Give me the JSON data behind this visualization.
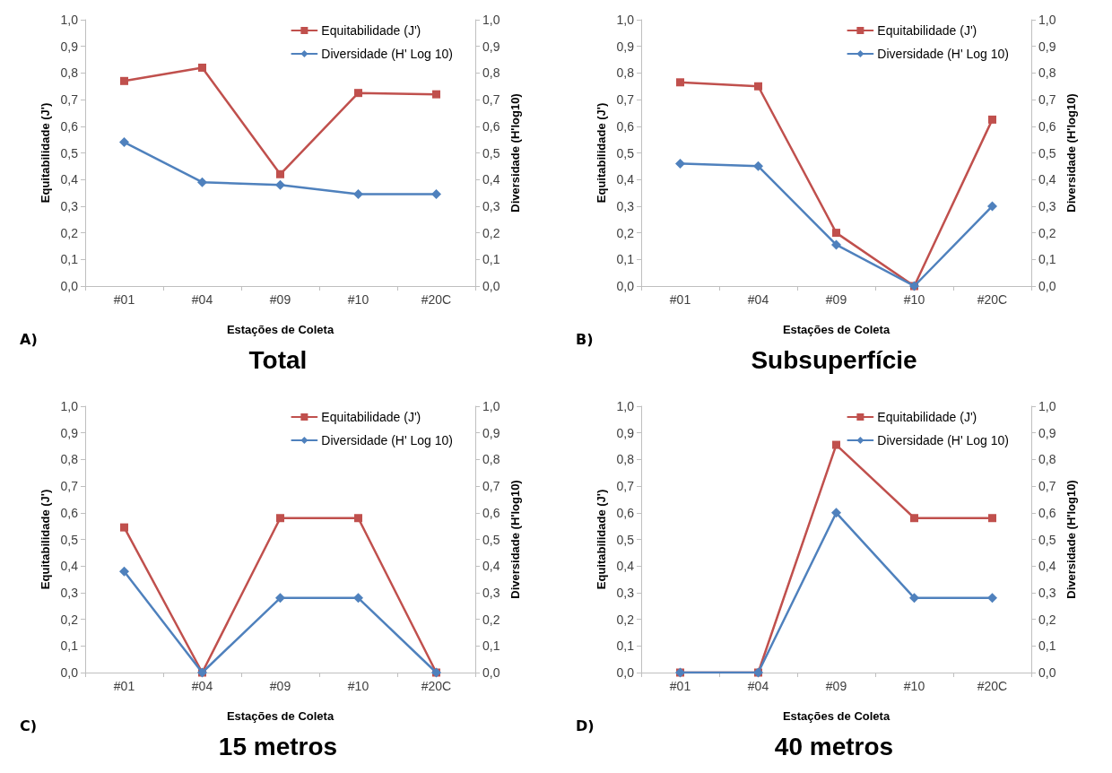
{
  "chart_data": [
    {
      "type": "line",
      "title": "Total",
      "xlabel": "Estações de Coleta",
      "ylabel": "Equitabilidade (J')",
      "y2label": "Diversidade (H'log10)",
      "annotations": [
        "A)"
      ],
      "categories": [
        "#01",
        "#04",
        "#09",
        "#10",
        "#20C"
      ],
      "series": [
        {
          "name": "Equitabilidade (J')",
          "color": "#c0504d",
          "marker": "square",
          "values": [
            0.77,
            0.82,
            0.42,
            0.725,
            0.72
          ]
        },
        {
          "name": "Diversidade (H' Log 10)",
          "color": "#4f81bd",
          "marker": "diamond",
          "axis": "y2",
          "values": [
            0.54,
            0.39,
            0.38,
            0.345,
            0.345
          ]
        }
      ],
      "ylim": [
        0,
        1
      ],
      "yticks": [
        {
          "value": 0,
          "label": "0,0"
        },
        {
          "value": 0.1,
          "label": "0,1"
        },
        {
          "value": 0.2,
          "label": "0,2"
        },
        {
          "value": 0.3,
          "label": "0,3"
        },
        {
          "value": 0.4,
          "label": "0,4"
        },
        {
          "value": 0.5,
          "label": "0,5"
        },
        {
          "value": 0.6,
          "label": "0,6"
        },
        {
          "value": 0.7,
          "label": "0,7"
        },
        {
          "value": 0.8,
          "label": "0,8"
        },
        {
          "value": 0.9,
          "label": "0,9"
        },
        {
          "value": 1,
          "label": "1,0"
        }
      ],
      "y2lim": [
        0,
        1
      ],
      "y2ticks": [
        {
          "value": 0,
          "label": "0,0"
        },
        {
          "value": 0.1,
          "label": "0,1"
        },
        {
          "value": 0.2,
          "label": "0,2"
        },
        {
          "value": 0.3,
          "label": "0,3"
        },
        {
          "value": 0.4,
          "label": "0,4"
        },
        {
          "value": 0.5,
          "label": "0,5"
        },
        {
          "value": 0.6,
          "label": "0,6"
        },
        {
          "value": 0.7,
          "label": "0,7"
        },
        {
          "value": 0.8,
          "label": "0,8"
        },
        {
          "value": 0.9,
          "label": "0,9"
        },
        {
          "value": 1,
          "label": "1,0"
        }
      ],
      "legend": "top right",
      "grid": false
    },
    {
      "type": "line",
      "title": "Subsuperfície",
      "xlabel": "Estações de Coleta",
      "ylabel": "Equitabilidade (J')",
      "y2label": "Diversidade (H'log10)",
      "annotations": [
        "B)"
      ],
      "categories": [
        "#01",
        "#04",
        "#09",
        "#10",
        "#20C"
      ],
      "series": [
        {
          "name": "Equitabilidade (J')",
          "color": "#c0504d",
          "marker": "square",
          "values": [
            0.765,
            0.75,
            0.2,
            0,
            0.625
          ]
        },
        {
          "name": "Diversidade (H' Log 10)",
          "color": "#4f81bd",
          "marker": "diamond",
          "axis": "y2",
          "values": [
            0.46,
            0.45,
            0.155,
            0,
            0.3
          ]
        }
      ],
      "ylim": [
        0,
        1
      ],
      "yticks": [
        {
          "value": 0,
          "label": "0,0"
        },
        {
          "value": 0.1,
          "label": "0,1"
        },
        {
          "value": 0.2,
          "label": "0,2"
        },
        {
          "value": 0.3,
          "label": "0,3"
        },
        {
          "value": 0.4,
          "label": "0,4"
        },
        {
          "value": 0.5,
          "label": "0,5"
        },
        {
          "value": 0.6,
          "label": "0,6"
        },
        {
          "value": 0.7,
          "label": "0,7"
        },
        {
          "value": 0.8,
          "label": "0,8"
        },
        {
          "value": 0.9,
          "label": "0,9"
        },
        {
          "value": 1,
          "label": "1,0"
        }
      ],
      "y2lim": [
        0,
        1
      ],
      "y2ticks": [
        {
          "value": 0,
          "label": "0,0"
        },
        {
          "value": 0.1,
          "label": "0,1"
        },
        {
          "value": 0.2,
          "label": "0,2"
        },
        {
          "value": 0.3,
          "label": "0,3"
        },
        {
          "value": 0.4,
          "label": "0,4"
        },
        {
          "value": 0.5,
          "label": "0,5"
        },
        {
          "value": 0.6,
          "label": "0,6"
        },
        {
          "value": 0.7,
          "label": "0,7"
        },
        {
          "value": 0.8,
          "label": "0,8"
        },
        {
          "value": 0.9,
          "label": "0,9"
        },
        {
          "value": 1,
          "label": "1,0"
        }
      ],
      "legend": "top right",
      "grid": false
    },
    {
      "type": "line",
      "title": "15 metros",
      "xlabel": "Estações de Coleta",
      "ylabel": "Equitabilidade (J')",
      "y2label": "Diversidade (H'log10)",
      "annotations": [
        "C)"
      ],
      "categories": [
        "#01",
        "#04",
        "#09",
        "#10",
        "#20C"
      ],
      "series": [
        {
          "name": "Equitabilidade (J')",
          "color": "#c0504d",
          "marker": "square",
          "values": [
            0.545,
            0,
            0.58,
            0.58,
            0
          ]
        },
        {
          "name": "Diversidade (H' Log 10)",
          "color": "#4f81bd",
          "marker": "diamond",
          "axis": "y2",
          "values": [
            0.38,
            0,
            0.28,
            0.28,
            0
          ]
        }
      ],
      "ylim": [
        0,
        1
      ],
      "yticks": [
        {
          "value": 0,
          "label": "0,0"
        },
        {
          "value": 0.1,
          "label": "0,1"
        },
        {
          "value": 0.2,
          "label": "0,2"
        },
        {
          "value": 0.3,
          "label": "0,3"
        },
        {
          "value": 0.4,
          "label": "0,4"
        },
        {
          "value": 0.5,
          "label": "0,5"
        },
        {
          "value": 0.6,
          "label": "0,6"
        },
        {
          "value": 0.7,
          "label": "0,7"
        },
        {
          "value": 0.8,
          "label": "0,8"
        },
        {
          "value": 0.9,
          "label": "0,9"
        },
        {
          "value": 1,
          "label": "1,0"
        }
      ],
      "y2lim": [
        0,
        1
      ],
      "y2ticks": [
        {
          "value": 0,
          "label": "0,0"
        },
        {
          "value": 0.1,
          "label": "0,1"
        },
        {
          "value": 0.2,
          "label": "0,2"
        },
        {
          "value": 0.3,
          "label": "0,3"
        },
        {
          "value": 0.4,
          "label": "0,4"
        },
        {
          "value": 0.5,
          "label": "0,5"
        },
        {
          "value": 0.6,
          "label": "0,6"
        },
        {
          "value": 0.7,
          "label": "0,7"
        },
        {
          "value": 0.8,
          "label": "0,8"
        },
        {
          "value": 0.9,
          "label": "0,9"
        },
        {
          "value": 1,
          "label": "1,0"
        }
      ],
      "legend": "top right",
      "grid": false
    },
    {
      "type": "line",
      "title": "40 metros",
      "xlabel": "Estações de Coleta",
      "ylabel": "Equitabilidade (J')",
      "y2label": "Diversidade (H'log10)",
      "annotations": [
        "D)"
      ],
      "categories": [
        "#01",
        "#04",
        "#09",
        "#10",
        "#20C"
      ],
      "series": [
        {
          "name": "Equitabilidade (J')",
          "color": "#c0504d",
          "marker": "square",
          "values": [
            0,
            0,
            0.855,
            0.58,
            0.58
          ]
        },
        {
          "name": "Diversidade (H' Log 10)",
          "color": "#4f81bd",
          "marker": "diamond",
          "axis": "y2",
          "values": [
            0,
            0,
            0.6,
            0.28,
            0.28
          ]
        }
      ],
      "ylim": [
        0,
        1
      ],
      "yticks": [
        {
          "value": 0,
          "label": "0,0"
        },
        {
          "value": 0.1,
          "label": "0,1"
        },
        {
          "value": 0.2,
          "label": "0,2"
        },
        {
          "value": 0.3,
          "label": "0,3"
        },
        {
          "value": 0.4,
          "label": "0,4"
        },
        {
          "value": 0.5,
          "label": "0,5"
        },
        {
          "value": 0.6,
          "label": "0,6"
        },
        {
          "value": 0.7,
          "label": "0,7"
        },
        {
          "value": 0.8,
          "label": "0,8"
        },
        {
          "value": 0.9,
          "label": "0,9"
        },
        {
          "value": 1,
          "label": "1,0"
        }
      ],
      "y2lim": [
        0,
        1
      ],
      "y2ticks": [
        {
          "value": 0,
          "label": "0,0"
        },
        {
          "value": 0.1,
          "label": "0,1"
        },
        {
          "value": 0.2,
          "label": "0,2"
        },
        {
          "value": 0.3,
          "label": "0,3"
        },
        {
          "value": 0.4,
          "label": "0,4"
        },
        {
          "value": 0.5,
          "label": "0,5"
        },
        {
          "value": 0.6,
          "label": "0,6"
        },
        {
          "value": 0.7,
          "label": "0,7"
        },
        {
          "value": 0.8,
          "label": "0,8"
        },
        {
          "value": 0.9,
          "label": "0,9"
        },
        {
          "value": 1,
          "label": "1,0"
        }
      ],
      "legend": "top right",
      "grid": false
    }
  ]
}
